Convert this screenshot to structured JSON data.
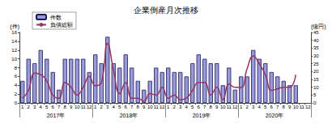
{
  "chart_data": {
    "type": "bar",
    "title": "企業倒産月次推移",
    "categories": [
      "1",
      "2",
      "3",
      "4",
      "5",
      "6",
      "7",
      "8",
      "9",
      "10",
      "11",
      "12",
      "1",
      "2",
      "3",
      "4",
      "5",
      "6",
      "7",
      "8",
      "9",
      "10",
      "11",
      "12",
      "1",
      "2",
      "3",
      "4",
      "5",
      "6",
      "7",
      "8",
      "9",
      "10",
      "11",
      "12",
      "1",
      "2",
      "3",
      "4",
      "5",
      "6",
      "7",
      "8",
      "9",
      "10",
      "11",
      "12"
    ],
    "category_groups": [
      "2017年",
      "2018年",
      "2019年",
      "2020年"
    ],
    "series": [
      {
        "name": "件数",
        "type": "bar",
        "color": "#9a9ad6",
        "values": [
          5,
          10,
          9,
          12,
          10,
          7,
          3,
          10,
          10,
          10,
          10,
          7,
          11,
          9,
          15,
          9,
          8,
          11,
          8,
          5,
          3,
          5,
          8,
          7,
          8,
          7,
          7,
          6,
          9,
          11,
          10,
          9,
          9,
          4,
          8,
          3,
          6,
          6,
          12,
          10,
          9,
          7,
          6,
          5,
          4,
          4,
          null,
          null
        ]
      },
      {
        "name": "負債総額",
        "type": "line",
        "axis": "y2",
        "color": "#993366",
        "marker": "none",
        "values": [
          3,
          8,
          19,
          18,
          14,
          5,
          3,
          13,
          10,
          5,
          10,
          17,
          11,
          13,
          38,
          21,
          6,
          13,
          3,
          3,
          1,
          6,
          5,
          10,
          3,
          5,
          2,
          3,
          8,
          13,
          13,
          5,
          10,
          2,
          12,
          10,
          10,
          22,
          30,
          25,
          18,
          8,
          9,
          10,
          10,
          18,
          null,
          null
        ]
      }
    ],
    "y_label": "(件)",
    "y2_label": "(億円)",
    "ylim": [
      0,
      16
    ],
    "yticks": [
      0,
      2,
      4,
      6,
      8,
      10,
      12,
      14,
      16
    ],
    "y2lim": [
      0,
      45
    ],
    "y2ticks": [
      0,
      5,
      10,
      15,
      20,
      25,
      30,
      35,
      40,
      45
    ],
    "legend": "upper left",
    "grid": false
  }
}
